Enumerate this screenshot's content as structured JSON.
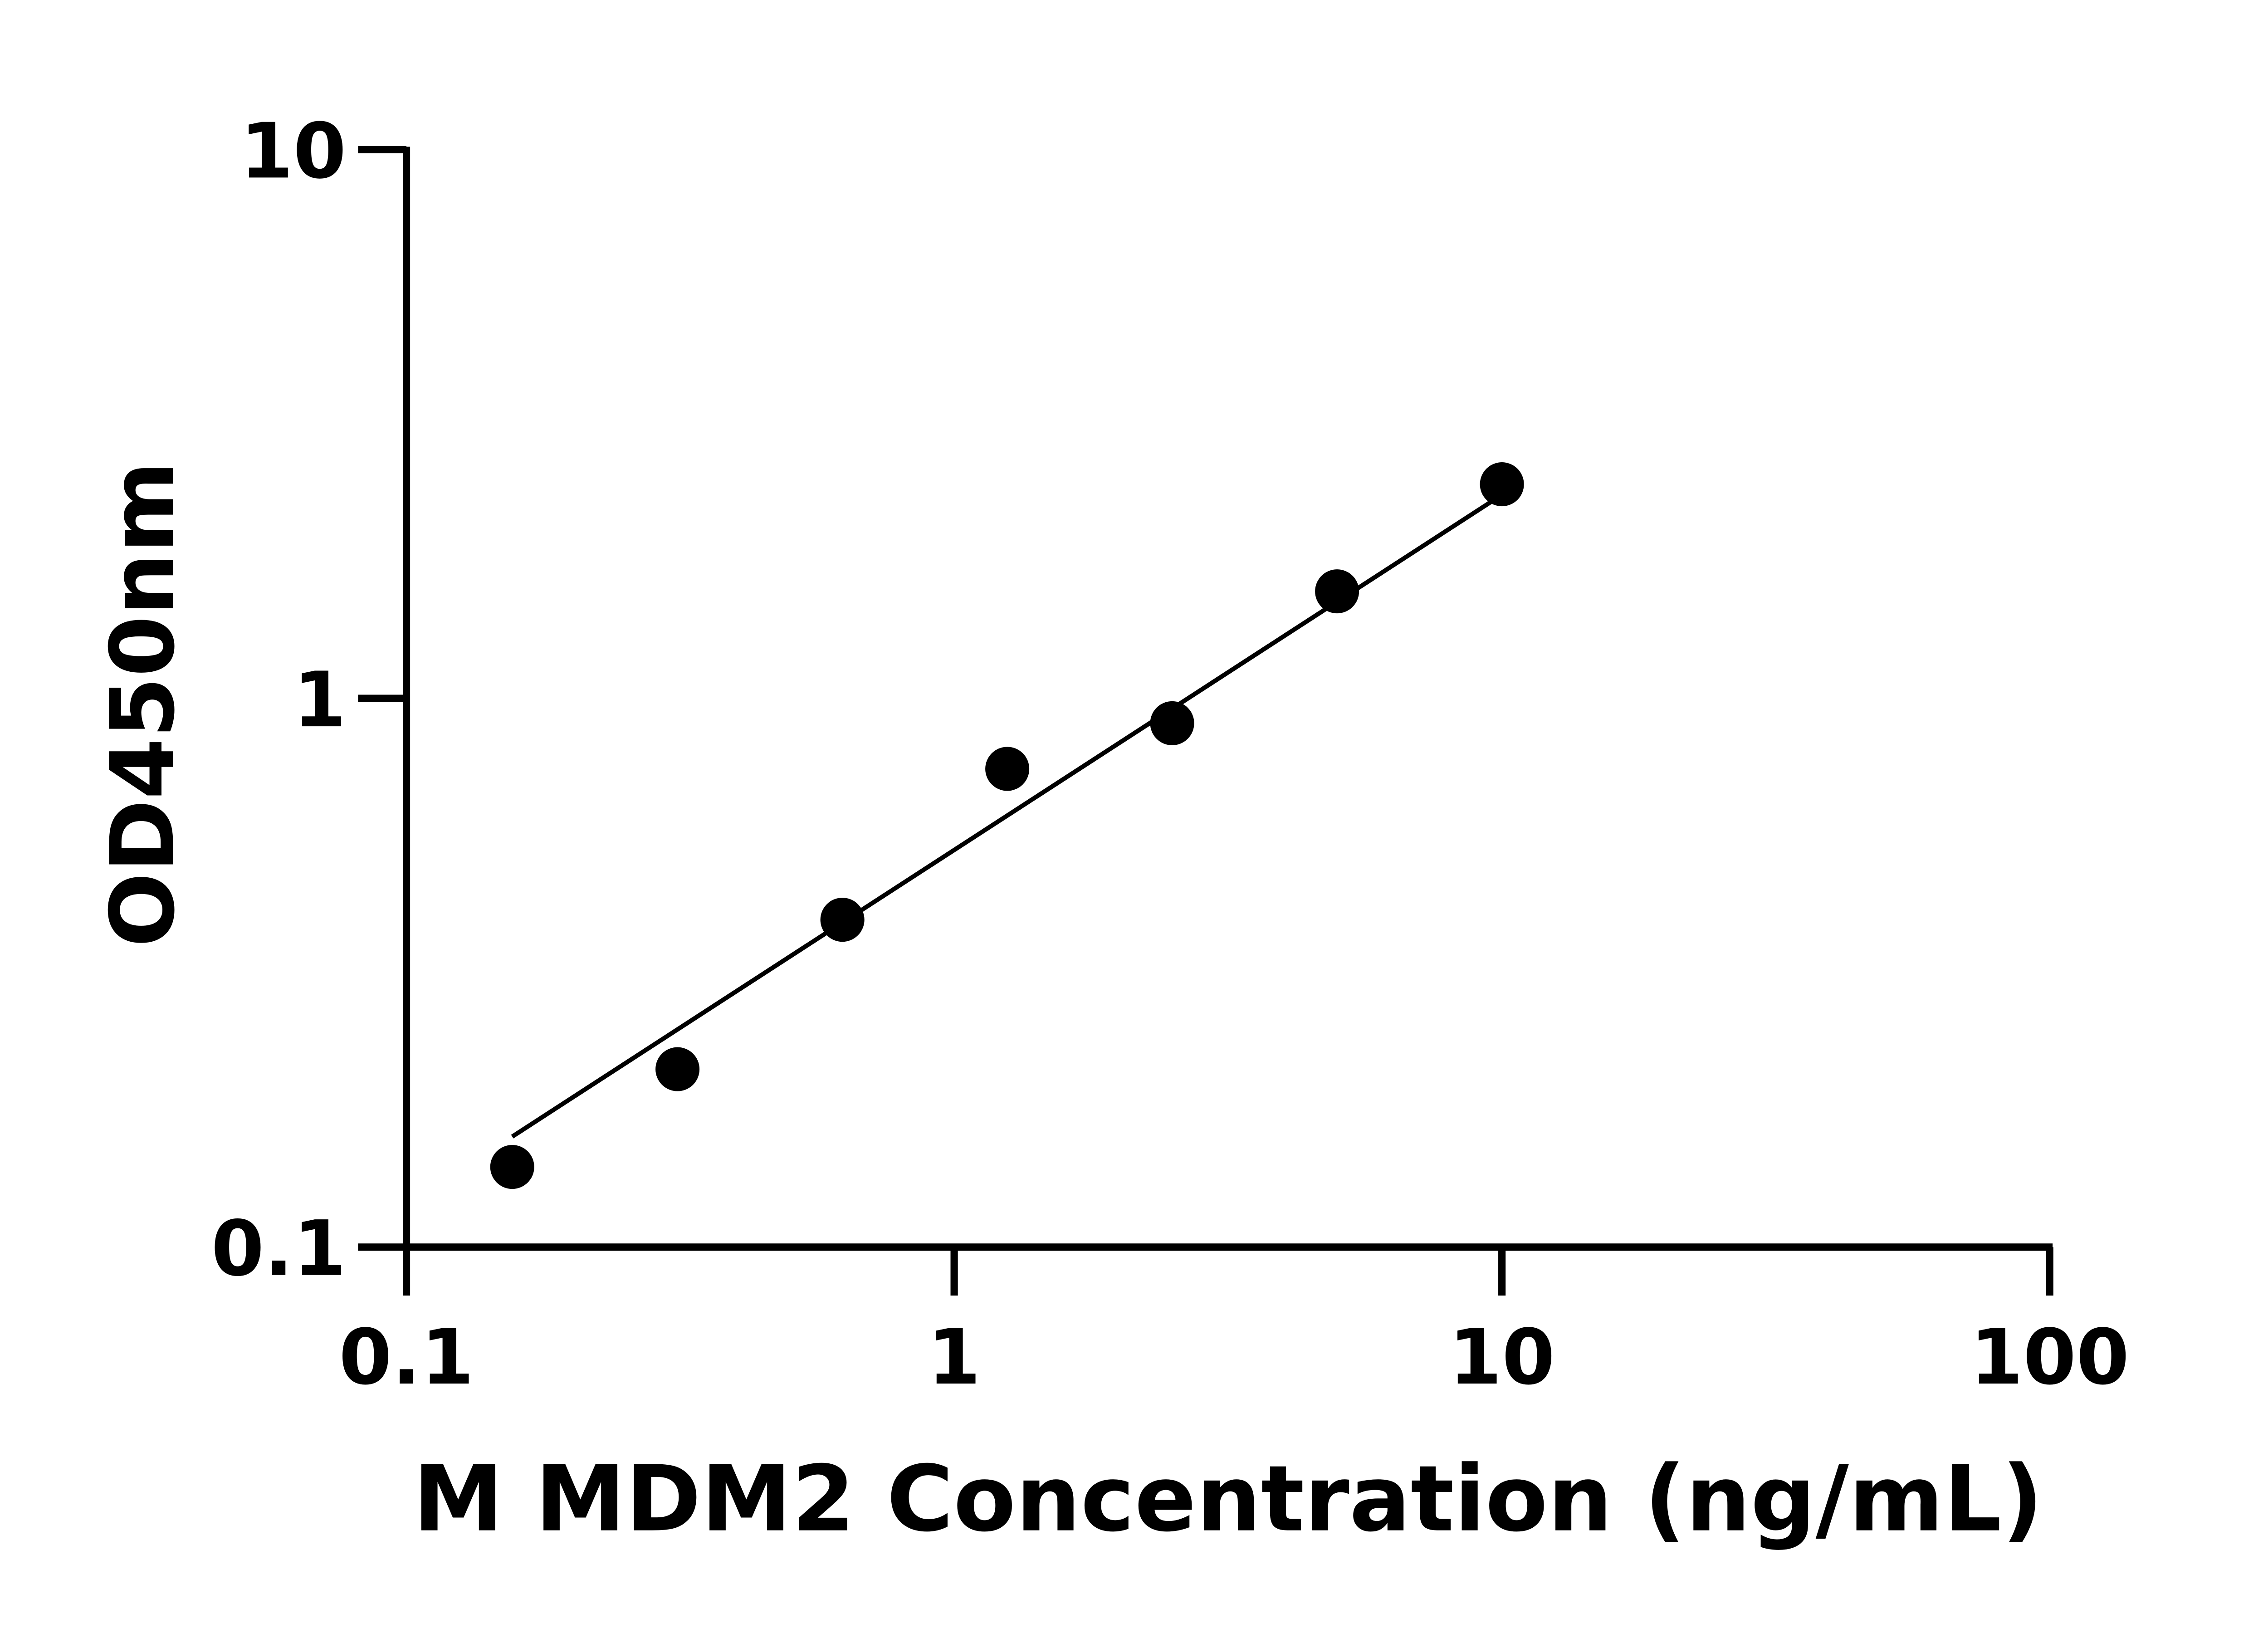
{
  "chart_data": {
    "type": "scatter",
    "xlabel": "M MDM2 Concentration (ng/mL)",
    "ylabel": "OD450nm",
    "xscale": "log",
    "yscale": "log",
    "xlim": [
      0.1,
      100
    ],
    "ylim": [
      0.1,
      10
    ],
    "xticks": [
      "0.1",
      "1",
      "10",
      "100"
    ],
    "yticks": [
      "0.1",
      "1",
      "10"
    ],
    "grid": false,
    "points": [
      {
        "x": 0.156,
        "y": 0.14
      },
      {
        "x": 0.3125,
        "y": 0.211
      },
      {
        "x": 0.625,
        "y": 0.395
      },
      {
        "x": 1.25,
        "y": 0.744
      },
      {
        "x": 2.5,
        "y": 0.901
      },
      {
        "x": 5,
        "y": 1.567
      },
      {
        "x": 10,
        "y": 2.456
      }
    ],
    "fit_line": [
      {
        "x": 0.156,
        "y": 0.159
      },
      {
        "x": 10,
        "y": 2.35
      }
    ],
    "colors": {
      "points": "#000000",
      "line": "#000000"
    }
  }
}
